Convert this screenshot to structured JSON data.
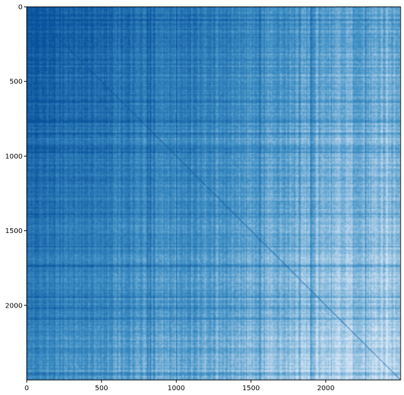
{
  "chart_data": {
    "type": "heatmap",
    "title": "",
    "xlabel": "",
    "ylabel": "",
    "matrix_size": 2500,
    "xlim": [
      0,
      2500
    ],
    "ylim": [
      2500,
      0
    ],
    "x_ticks": [
      0,
      500,
      1000,
      1500,
      2000
    ],
    "y_ticks": [
      0,
      500,
      1000,
      1500,
      2000
    ],
    "x_tick_labels": [
      "0",
      "500",
      "1000",
      "1500",
      "2000"
    ],
    "y_tick_labels": [
      "0",
      "500",
      "1000",
      "1500",
      "2000"
    ],
    "colormap": "Blues",
    "color_scale": {
      "dark": "#08519c",
      "mid": "#4292c6",
      "light": "#d6e6f5"
    },
    "value_range": [
      0,
      1
    ],
    "trend": "values highest (darkest) near the top-left corner and decrease toward the bottom-right corner, with a dark diagonal line and many vertical and horizontal streaks",
    "grid": false,
    "legend": "none"
  }
}
